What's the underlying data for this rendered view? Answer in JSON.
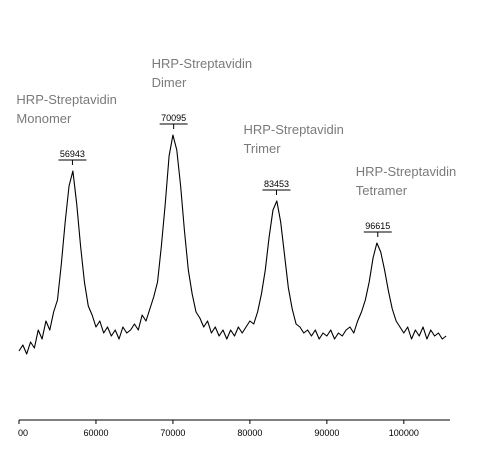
{
  "chart_data": {
    "type": "line",
    "xlim": [
      50000,
      106000
    ],
    "ylim": [
      0,
      100
    ],
    "xticks": [
      {
        "value": 50000,
        "label": "00"
      },
      60000,
      70000,
      80000,
      90000,
      100000
    ],
    "x": [
      50000,
      50500,
      51000,
      51500,
      52000,
      52500,
      53000,
      53500,
      54000,
      54500,
      55000,
      55500,
      56000,
      56500,
      57000,
      57500,
      58000,
      58500,
      59000,
      59500,
      60000,
      60500,
      61000,
      61500,
      62000,
      62500,
      63000,
      63500,
      64000,
      64500,
      65000,
      65500,
      66000,
      66500,
      67000,
      67500,
      68000,
      68500,
      69000,
      69500,
      70000,
      70500,
      71000,
      71500,
      72000,
      72500,
      73000,
      73500,
      74000,
      74500,
      75000,
      75500,
      76000,
      76500,
      77000,
      77500,
      78000,
      78500,
      79000,
      79500,
      80000,
      80500,
      81000,
      81500,
      82000,
      82500,
      83000,
      83500,
      84000,
      84500,
      85000,
      85500,
      86000,
      86500,
      87000,
      87500,
      88000,
      88500,
      89000,
      89500,
      90000,
      90500,
      91000,
      91500,
      92000,
      92500,
      93000,
      93500,
      94000,
      94500,
      95000,
      95500,
      96000,
      96500,
      97000,
      97500,
      98000,
      98500,
      99000,
      99500,
      100000,
      100500,
      101000,
      101500,
      102000,
      102500,
      103000,
      103500,
      104000,
      104500,
      105000,
      105500
    ],
    "series": [
      {
        "color": "#000000",
        "values": [
          23,
          25,
          22,
          26,
          24,
          30,
          27,
          33,
          30,
          36,
          40,
          52,
          66,
          78,
          83,
          72,
          58,
          46,
          38,
          35,
          31,
          33,
          29,
          31,
          28,
          30,
          27,
          31,
          29,
          30,
          32,
          30,
          35,
          33,
          37,
          41,
          46,
          58,
          72,
          88,
          95,
          90,
          78,
          63,
          50,
          42,
          36,
          34,
          31,
          33,
          29,
          31,
          28,
          30,
          27,
          30,
          28,
          31,
          29,
          31,
          33,
          32,
          36,
          42,
          50,
          61,
          70,
          73,
          66,
          55,
          44,
          37,
          32,
          31,
          29,
          30,
          28,
          30,
          27,
          29,
          28,
          30,
          27,
          29,
          28,
          30,
          31,
          29,
          33,
          36,
          40,
          46,
          54,
          59,
          56,
          50,
          43,
          37,
          33,
          31,
          29,
          31,
          27,
          30,
          28,
          31,
          27,
          30,
          28,
          29,
          27,
          28
        ]
      }
    ],
    "annotations": [
      {
        "text": [
          "HRP-Streptavidin",
          "Monomer"
        ],
        "peak": 56943
      },
      {
        "text": [
          "HRP-Streptavidin",
          "Dimer"
        ],
        "peak": 70095
      },
      {
        "text": [
          "HRP-Streptavidin",
          "Trimer"
        ],
        "peak": 83453
      },
      {
        "text": [
          "HRP-Streptavidin",
          "Tetramer"
        ],
        "peak": 96615
      }
    ]
  }
}
